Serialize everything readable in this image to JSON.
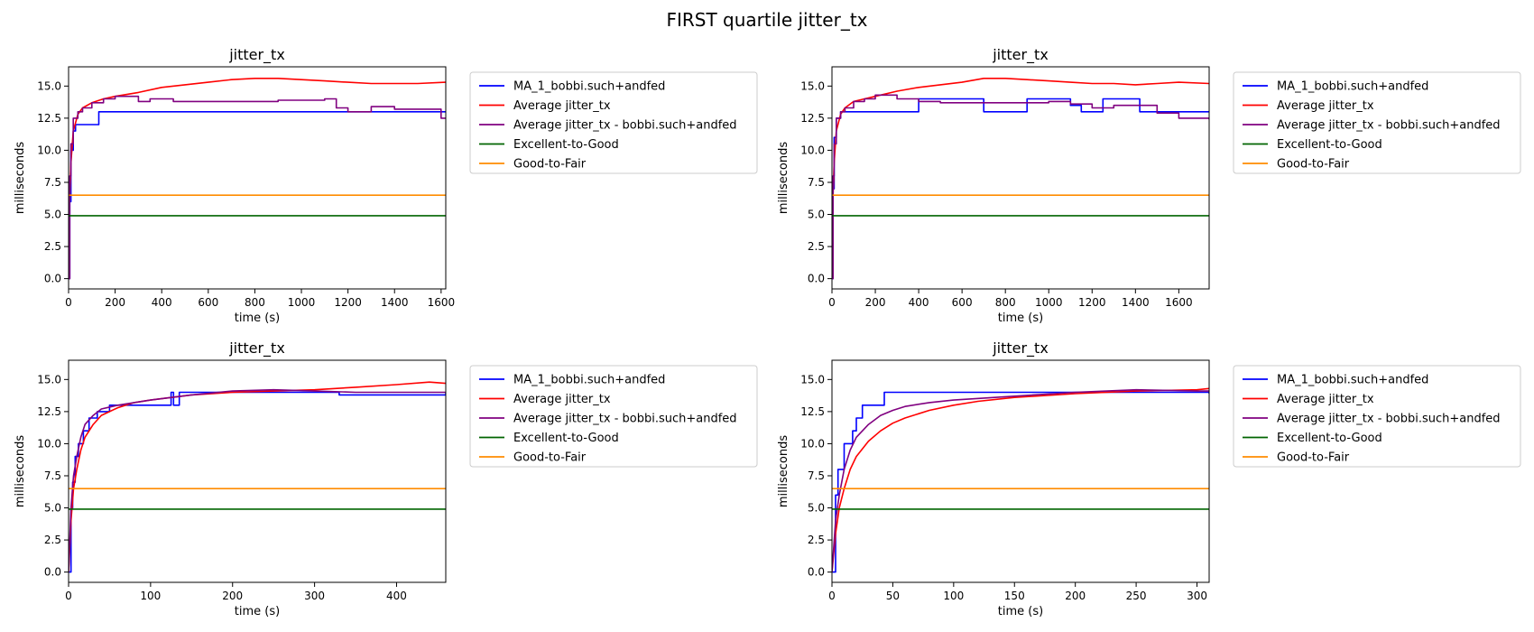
{
  "figure": {
    "suptitle": "FIRST quartile jitter_tx"
  },
  "colors": {
    "ma": "#0000ff",
    "avg": "#ff0000",
    "avg_filtered": "#800080",
    "excellent_good": "#006400",
    "good_fair": "#ff8c00"
  },
  "chart_data": [
    {
      "type": "line",
      "title": "jitter_tx",
      "xlabel": "time (s)",
      "ylabel": "milliseconds",
      "xlim": [
        0,
        1620
      ],
      "ylim": [
        -0.8,
        16.5
      ],
      "xticks": [
        0,
        200,
        400,
        600,
        800,
        1000,
        1200,
        1400,
        1600
      ],
      "yticks": [
        0.0,
        2.5,
        5.0,
        7.5,
        10.0,
        12.5,
        15.0
      ],
      "legend_position": "outside-right-top",
      "series": [
        {
          "name": "MA_1_bobbi.such+andfed",
          "color": "ma",
          "step": true,
          "x": [
            0,
            5,
            10,
            20,
            30,
            50,
            130,
            400,
            800,
            1200,
            1620
          ],
          "y": [
            0,
            6,
            10,
            11.5,
            12,
            12,
            13,
            13,
            13,
            13,
            13
          ]
        },
        {
          "name": "Average jitter_tx",
          "color": "avg",
          "x": [
            0,
            5,
            10,
            20,
            40,
            60,
            100,
            150,
            200,
            300,
            400,
            500,
            600,
            700,
            800,
            900,
            1000,
            1100,
            1200,
            1300,
            1400,
            1500,
            1620
          ],
          "y": [
            0,
            6.5,
            9,
            11.5,
            12.8,
            13.3,
            13.7,
            14.0,
            14.2,
            14.5,
            14.9,
            15.1,
            15.3,
            15.5,
            15.6,
            15.6,
            15.5,
            15.4,
            15.3,
            15.2,
            15.2,
            15.2,
            15.3
          ]
        },
        {
          "name": "Average jitter_tx - bobbi.such+andfed",
          "color": "avg_filtered",
          "step": true,
          "x": [
            0,
            5,
            10,
            20,
            40,
            60,
            100,
            150,
            200,
            300,
            350,
            450,
            500,
            700,
            900,
            1000,
            1100,
            1150,
            1200,
            1300,
            1400,
            1500,
            1600,
            1620
          ],
          "y": [
            0,
            8,
            10.5,
            12.5,
            13.0,
            13.3,
            13.7,
            14.0,
            14.2,
            13.8,
            14.0,
            13.8,
            13.8,
            13.8,
            13.9,
            13.9,
            14.0,
            13.3,
            13.0,
            13.4,
            13.2,
            13.2,
            12.5,
            12.5
          ]
        },
        {
          "name": "Excellent-to-Good",
          "color": "excellent_good",
          "x": [
            0,
            1620
          ],
          "y": [
            4.9,
            4.9
          ]
        },
        {
          "name": "Good-to-Fair",
          "color": "good_fair",
          "x": [
            0,
            1620
          ],
          "y": [
            6.5,
            6.5
          ]
        }
      ]
    },
    {
      "type": "line",
      "title": "jitter_tx",
      "xlabel": "time (s)",
      "ylabel": "milliseconds",
      "xlim": [
        0,
        1740
      ],
      "ylim": [
        -0.8,
        16.5
      ],
      "xticks": [
        0,
        200,
        400,
        600,
        800,
        1000,
        1200,
        1400,
        1600
      ],
      "yticks": [
        0.0,
        2.5,
        5.0,
        7.5,
        10.0,
        12.5,
        15.0
      ],
      "legend_position": "outside-right-top",
      "series": [
        {
          "name": "MA_1_bobbi.such+andfed",
          "color": "ma",
          "step": true,
          "x": [
            0,
            5,
            10,
            20,
            40,
            400,
            700,
            900,
            1100,
            1150,
            1250,
            1400,
            1420,
            1740
          ],
          "y": [
            0,
            7,
            11,
            12.5,
            13,
            14,
            13,
            14,
            13.5,
            13,
            14,
            14,
            13,
            13
          ]
        },
        {
          "name": "Average jitter_tx",
          "color": "avg",
          "x": [
            0,
            5,
            10,
            20,
            40,
            60,
            100,
            150,
            200,
            300,
            400,
            500,
            600,
            700,
            800,
            900,
            1000,
            1100,
            1200,
            1300,
            1400,
            1500,
            1600,
            1740
          ],
          "y": [
            0,
            6.5,
            9,
            11.5,
            12.8,
            13.3,
            13.8,
            14.0,
            14.2,
            14.6,
            14.9,
            15.1,
            15.3,
            15.6,
            15.6,
            15.5,
            15.4,
            15.3,
            15.2,
            15.2,
            15.1,
            15.2,
            15.3,
            15.2
          ]
        },
        {
          "name": "Average jitter_tx - bobbi.such+andfed",
          "color": "avg_filtered",
          "step": true,
          "x": [
            0,
            5,
            10,
            20,
            40,
            60,
            100,
            150,
            200,
            300,
            400,
            500,
            700,
            1000,
            1100,
            1200,
            1300,
            1400,
            1500,
            1600,
            1740
          ],
          "y": [
            0,
            8,
            10.5,
            12.5,
            13.0,
            13.3,
            13.8,
            14.0,
            14.3,
            14.0,
            13.8,
            13.7,
            13.7,
            13.8,
            13.6,
            13.3,
            13.5,
            13.5,
            12.9,
            12.5,
            12.4
          ]
        },
        {
          "name": "Excellent-to-Good",
          "color": "excellent_good",
          "x": [
            0,
            1740
          ],
          "y": [
            4.9,
            4.9
          ]
        },
        {
          "name": "Good-to-Fair",
          "color": "good_fair",
          "x": [
            0,
            1740
          ],
          "y": [
            6.5,
            6.5
          ]
        }
      ]
    },
    {
      "type": "line",
      "title": "jitter_tx",
      "xlabel": "time (s)",
      "ylabel": "milliseconds",
      "xlim": [
        0,
        460
      ],
      "ylim": [
        -0.8,
        16.5
      ],
      "xticks": [
        0,
        100,
        200,
        300,
        400
      ],
      "yticks": [
        0.0,
        2.5,
        5.0,
        7.5,
        10.0,
        12.5,
        15.0
      ],
      "legend_position": "outside-right-top",
      "series": [
        {
          "name": "MA_1_bobbi.such+andfed",
          "color": "ma",
          "step": true,
          "x": [
            0,
            3,
            5,
            8,
            12,
            18,
            25,
            35,
            50,
            70,
            100,
            125,
            128,
            135,
            140,
            200,
            300,
            330,
            460
          ],
          "y": [
            0,
            5,
            7,
            9,
            10,
            11,
            12,
            12.5,
            13,
            13,
            13,
            14,
            13,
            14,
            14,
            14,
            14,
            13.8,
            14
          ]
        },
        {
          "name": "Average jitter_tx",
          "color": "avg",
          "x": [
            0,
            3,
            6,
            10,
            15,
            20,
            30,
            40,
            60,
            80,
            100,
            150,
            200,
            250,
            300,
            350,
            400,
            440,
            460
          ],
          "y": [
            0,
            4,
            6.5,
            8,
            9.5,
            10.5,
            11.5,
            12.2,
            12.8,
            13.2,
            13.4,
            13.8,
            14.0,
            14.1,
            14.2,
            14.4,
            14.6,
            14.8,
            14.7
          ]
        },
        {
          "name": "Average jitter_tx - bobbi.such+andfed",
          "color": "avg_filtered",
          "x": [
            0,
            3,
            6,
            10,
            15,
            20,
            30,
            40,
            60,
            80,
            100,
            150,
            200,
            250,
            300,
            350,
            400,
            460
          ],
          "y": [
            0,
            5,
            7.5,
            9,
            10.5,
            11.5,
            12.2,
            12.7,
            13.0,
            13.2,
            13.4,
            13.8,
            14.1,
            14.2,
            14.1,
            14.0,
            14.0,
            14.0
          ]
        },
        {
          "name": "Excellent-to-Good",
          "color": "excellent_good",
          "x": [
            0,
            460
          ],
          "y": [
            4.9,
            4.9
          ]
        },
        {
          "name": "Good-to-Fair",
          "color": "good_fair",
          "x": [
            0,
            460
          ],
          "y": [
            6.5,
            6.5
          ]
        }
      ]
    },
    {
      "type": "line",
      "title": "jitter_tx",
      "xlabel": "time (s)",
      "ylabel": "milliseconds",
      "xlim": [
        0,
        310
      ],
      "ylim": [
        -0.8,
        16.5
      ],
      "xticks": [
        0,
        50,
        100,
        150,
        200,
        250,
        300
      ],
      "yticks": [
        0.0,
        2.5,
        5.0,
        7.5,
        10.0,
        12.5,
        15.0
      ],
      "legend_position": "outside-right-top",
      "series": [
        {
          "name": "MA_1_bobbi.such+andfed",
          "color": "ma",
          "step": true,
          "x": [
            0,
            3,
            5,
            8,
            10,
            14,
            17,
            20,
            25,
            35,
            43,
            100,
            200,
            300,
            310
          ],
          "y": [
            0,
            6,
            8,
            8,
            10,
            10,
            11,
            12,
            13,
            13,
            14,
            14,
            14,
            14,
            13.9
          ]
        },
        {
          "name": "Average jitter_tx",
          "color": "avg",
          "x": [
            0,
            3,
            6,
            10,
            15,
            20,
            30,
            40,
            50,
            60,
            80,
            100,
            120,
            150,
            200,
            250,
            300,
            310
          ],
          "y": [
            0,
            3,
            5,
            6.5,
            8,
            9,
            10.2,
            11,
            11.6,
            12.0,
            12.6,
            13.0,
            13.3,
            13.6,
            13.9,
            14.1,
            14.2,
            14.3
          ]
        },
        {
          "name": "Average jitter_tx - bobbi.such+andfed",
          "color": "avg_filtered",
          "x": [
            0,
            3,
            6,
            10,
            15,
            20,
            30,
            40,
            50,
            60,
            80,
            100,
            150,
            200,
            250,
            300,
            310
          ],
          "y": [
            0,
            4,
            6,
            8,
            9.5,
            10.5,
            11.5,
            12.2,
            12.6,
            12.9,
            13.2,
            13.4,
            13.7,
            14.0,
            14.2,
            14.1,
            14.1
          ]
        },
        {
          "name": "Excellent-to-Good",
          "color": "excellent_good",
          "x": [
            0,
            310
          ],
          "y": [
            4.9,
            4.9
          ]
        },
        {
          "name": "Good-to-Fair",
          "color": "good_fair",
          "x": [
            0,
            310
          ],
          "y": [
            6.5,
            6.5
          ]
        }
      ]
    }
  ]
}
